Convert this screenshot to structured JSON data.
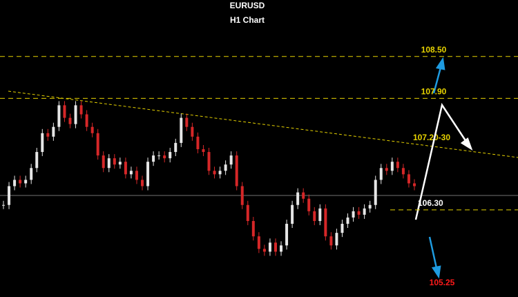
{
  "chart_data": {
    "type": "candlestick",
    "title": "EURUSD",
    "subtitle": "H1 Chart",
    "values": [
      106.37,
      106.64,
      106.73,
      106.68,
      106.73,
      106.9,
      107.13,
      107.4,
      107.35,
      107.49,
      107.8,
      107.62,
      107.53,
      107.8,
      107.67,
      107.49,
      107.4,
      107.08,
      106.9,
      107.04,
      106.95,
      106.99,
      106.81,
      106.86,
      106.73,
      106.64,
      106.99,
      107.08,
      107.08,
      107.04,
      107.13,
      107.26,
      107.62,
      107.49,
      107.35,
      107.17,
      107.13,
      106.86,
      106.81,
      106.86,
      106.95,
      107.08,
      106.64,
      106.37,
      106.14,
      105.92,
      105.74,
      105.7,
      105.83,
      105.7,
      105.79,
      106.1,
      106.37,
      106.55,
      106.46,
      106.28,
      106.14,
      106.32,
      105.92,
      105.79,
      105.97,
      106.1,
      106.19,
      106.28,
      106.23,
      106.32,
      106.37,
      106.73,
      106.9,
      106.86,
      106.99,
      106.9,
      106.81,
      106.68,
      106.64
    ],
    "up_color": "#e6e6e6",
    "down_color": "#d62728",
    "ylim": [
      105.05,
      109.31
    ],
    "levels": [
      {
        "value": 108.5,
        "label": "108.50"
      },
      {
        "value": 107.9,
        "label": "107.90"
      },
      {
        "value": 106.3,
        "label": "106.30"
      }
    ],
    "level_color": "#e6d200",
    "trendline_label": "107.20-30",
    "target_label": {
      "value": 105.25,
      "label": "105.25"
    },
    "target_color": "#ff1a1a"
  }
}
